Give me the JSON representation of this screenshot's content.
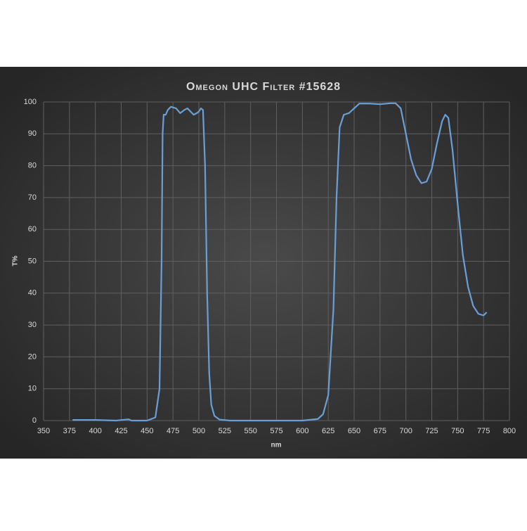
{
  "chart_data": {
    "type": "line",
    "title": "Omegon UHC Filter #15628",
    "x_label": "nm",
    "y_label": "T%",
    "xlim": [
      350,
      800
    ],
    "xticks": [
      350,
      375,
      400,
      425,
      450,
      475,
      500,
      525,
      550,
      575,
      600,
      625,
      650,
      675,
      700,
      725,
      750,
      775,
      800
    ],
    "ylim": [
      0,
      100
    ],
    "yticks": [
      0,
      10,
      20,
      30,
      40,
      50,
      60,
      70,
      80,
      90,
      100
    ],
    "grid": true,
    "series": [
      {
        "color": "#6a9fd6",
        "x": [
          378,
          400,
          420,
          432,
          435,
          450,
          458,
          462,
          464,
          465,
          466,
          468,
          470,
          473,
          478,
          482,
          486,
          489,
          492,
          495,
          498,
          500,
          502,
          504,
          506,
          508,
          510,
          512,
          515,
          520,
          530,
          600,
          615,
          620,
          625,
          630,
          633,
          636,
          640,
          645,
          650,
          655,
          665,
          675,
          685,
          690,
          695,
          700,
          705,
          710,
          715,
          720,
          725,
          730,
          735,
          738,
          741,
          745,
          750,
          755,
          760,
          765,
          770,
          775,
          778
        ],
        "values": [
          0.2,
          0.2,
          0,
          0.4,
          0,
          0,
          1,
          10,
          50,
          90,
          96,
          96,
          97.5,
          98.5,
          98,
          96.5,
          97.5,
          98,
          97,
          96,
          96.5,
          97,
          98,
          97.5,
          80,
          40,
          15,
          5,
          1.5,
          0.3,
          0,
          0,
          0.5,
          2,
          8,
          35,
          70,
          92,
          96,
          96.5,
          98,
          99.5,
          99.5,
          99.3,
          99.6,
          99.6,
          98,
          90,
          82,
          77,
          74.5,
          75,
          79,
          87,
          94,
          96,
          95,
          85,
          68,
          52,
          42,
          36,
          33.5,
          33,
          34
        ]
      }
    ]
  }
}
